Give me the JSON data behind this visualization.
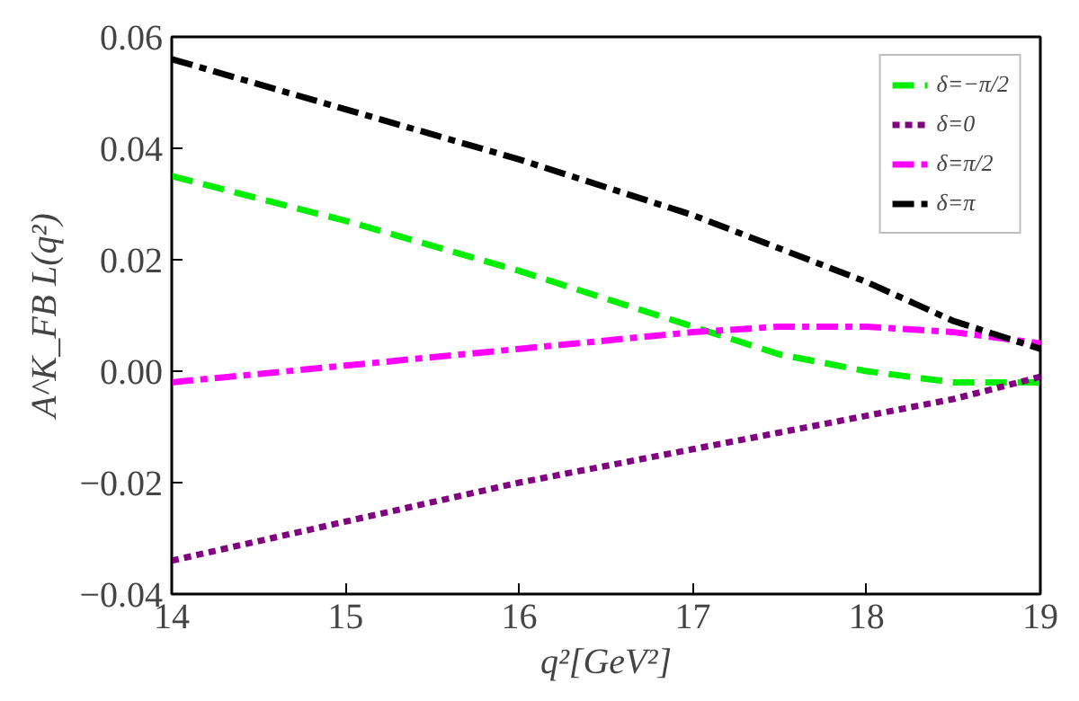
{
  "chart_data": {
    "type": "line",
    "xlabel": "q²[GeV²]",
    "ylabel": "A^K_FB L(q²)",
    "x": [
      14,
      15,
      16,
      17,
      17.5,
      18,
      18.5,
      19
    ],
    "series": [
      {
        "name": "δ=−π/2",
        "color": "#00ee00",
        "line_style": "dashed",
        "values": [
          0.035,
          0.027,
          0.018,
          0.008,
          0.003,
          0.0,
          -0.002,
          -0.002
        ]
      },
      {
        "name": "δ=0",
        "color": "#800080",
        "line_style": "dotted",
        "values": [
          -0.034,
          -0.027,
          -0.02,
          -0.014,
          -0.011,
          -0.008,
          -0.005,
          -0.001
        ]
      },
      {
        "name": "δ=π/2",
        "color": "#ff00ff",
        "line_style": "dashdot",
        "values": [
          -0.002,
          0.001,
          0.004,
          0.007,
          0.008,
          0.008,
          0.007,
          0.005
        ]
      },
      {
        "name": "δ=π",
        "color": "#000000",
        "line_style": "dashdot",
        "values": [
          0.056,
          0.047,
          0.038,
          0.028,
          0.022,
          0.016,
          0.009,
          0.004
        ]
      }
    ],
    "xlim": [
      14,
      19
    ],
    "ylim": [
      -0.04,
      0.06
    ],
    "xticks": [
      14,
      15,
      16,
      17,
      18,
      19
    ],
    "yticks": [
      {
        "value": -0.04,
        "label": "−0.04"
      },
      {
        "value": -0.02,
        "label": "−0.02"
      },
      {
        "value": 0,
        "label": "0.00"
      },
      {
        "value": 0.02,
        "label": "0.02"
      },
      {
        "value": 0.04,
        "label": "0.04"
      },
      {
        "value": 0.06,
        "label": "0.06"
      }
    ],
    "grid": false,
    "legend": "top right"
  }
}
